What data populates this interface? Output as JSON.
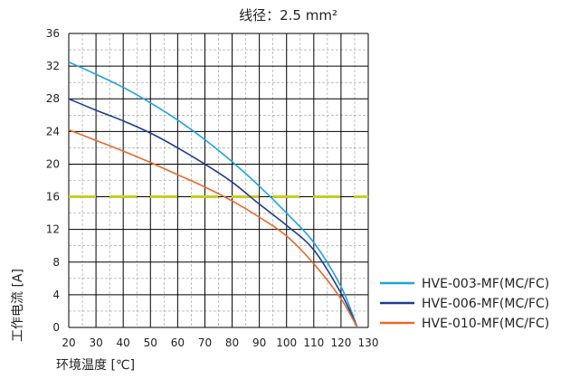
{
  "chart_data": {
    "type": "line",
    "title": "线径：2.5 mm²",
    "xlabel": "环境温度 [℃]",
    "ylabel": "工作电流 [A]",
    "xlim": [
      20,
      130
    ],
    "ylim": [
      0,
      36
    ],
    "x_ticks": [
      20,
      30,
      40,
      50,
      60,
      70,
      80,
      90,
      100,
      110,
      120,
      130
    ],
    "y_ticks": [
      0,
      4,
      8,
      12,
      16,
      20,
      24,
      28,
      32,
      36
    ],
    "grid": true,
    "legend_position": "right",
    "reference_line": {
      "y": 16,
      "color": "#c9cc22",
      "style": "dashed"
    },
    "series": [
      {
        "name": "HVE-003-MF(MC/FC)",
        "color": "#1ea3e0",
        "x": [
          20,
          30,
          40,
          50,
          60,
          70,
          80,
          90,
          100,
          110,
          120,
          126
        ],
        "y": [
          32.5,
          31.0,
          29.4,
          27.5,
          25.4,
          23.0,
          20.3,
          17.3,
          14.0,
          10.4,
          5.0,
          0
        ]
      },
      {
        "name": "HVE-006-MF(MC/FC)",
        "color": "#1f3b8c",
        "x": [
          20,
          30,
          40,
          50,
          60,
          70,
          80,
          90,
          100,
          110,
          120,
          126
        ],
        "y": [
          28.0,
          26.6,
          25.3,
          23.8,
          22.0,
          20.0,
          17.8,
          15.1,
          12.5,
          9.5,
          4.2,
          0
        ]
      },
      {
        "name": "HVE-010-MF(MC/FC)",
        "color": "#e8692a",
        "x": [
          20,
          30,
          40,
          50,
          60,
          70,
          80,
          90,
          100,
          110,
          120,
          126
        ],
        "y": [
          24.2,
          22.9,
          21.6,
          20.2,
          18.7,
          17.2,
          15.5,
          13.5,
          11.2,
          7.8,
          3.5,
          0
        ]
      }
    ]
  }
}
